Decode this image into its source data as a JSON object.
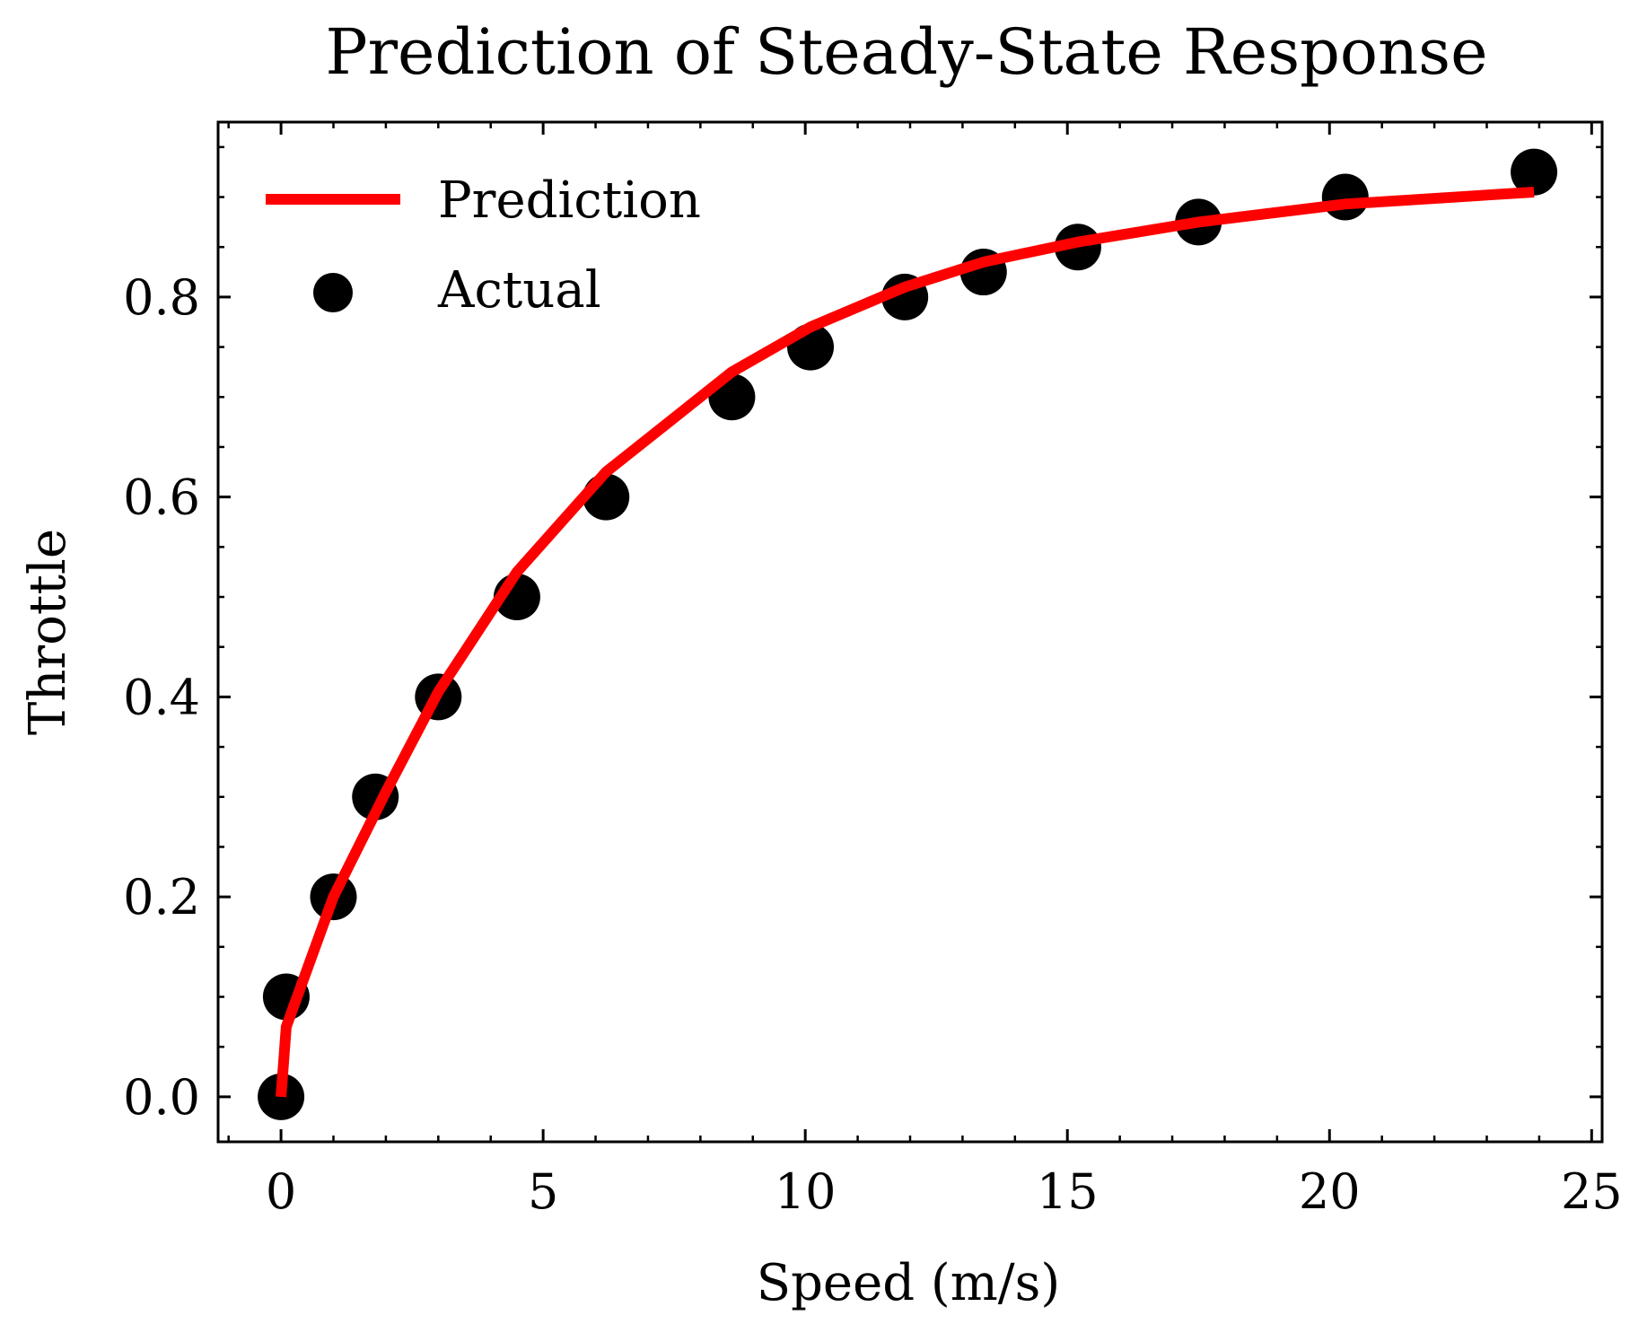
{
  "chart_data": {
    "type": "line",
    "title": "Prediction of Steady-State Response",
    "xlabel": "Speed (m/s)",
    "ylabel": "Throttle",
    "xlim": [
      -1.2,
      25.2
    ],
    "ylim": [
      -0.045,
      0.975
    ],
    "xticks": [
      0,
      5,
      10,
      15,
      20,
      25
    ],
    "xtick_labels": [
      "0",
      "5",
      "10",
      "15",
      "20",
      "25"
    ],
    "yticks": [
      0.0,
      0.2,
      0.4,
      0.6,
      0.8
    ],
    "ytick_labels": [
      "0.0",
      "0.2",
      "0.4",
      "0.6",
      "0.8"
    ],
    "grid": false,
    "legend_position": "upper-left",
    "series": [
      {
        "name": "Prediction",
        "kind": "line",
        "color": "#ff0000",
        "x": [
          0.0,
          0.1,
          1.0,
          2.0,
          3.0,
          4.5,
          6.2,
          8.6,
          10.1,
          11.9,
          13.4,
          15.2,
          17.5,
          20.3,
          23.9
        ],
        "y": [
          0.0,
          0.07,
          0.2,
          0.305,
          0.405,
          0.525,
          0.625,
          0.725,
          0.77,
          0.81,
          0.835,
          0.855,
          0.875,
          0.893,
          0.905
        ]
      },
      {
        "name": "Actual",
        "kind": "scatter",
        "color": "#000000",
        "x": [
          0.0,
          0.1,
          1.0,
          1.8,
          3.0,
          4.5,
          6.2,
          8.6,
          10.1,
          11.9,
          13.4,
          15.2,
          17.5,
          20.3,
          23.9
        ],
        "y": [
          0.0,
          0.1,
          0.2,
          0.3,
          0.4,
          0.5,
          0.6,
          0.7,
          0.75,
          0.8,
          0.825,
          0.85,
          0.875,
          0.9,
          0.925
        ]
      }
    ]
  }
}
